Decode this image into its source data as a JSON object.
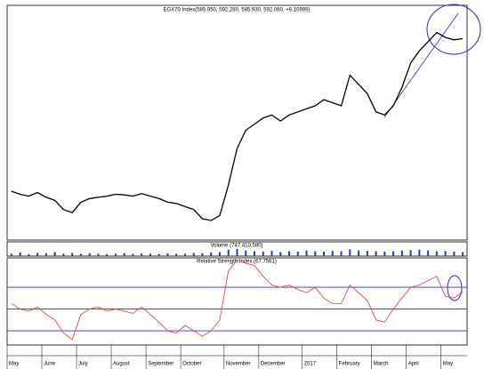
{
  "chart_data": [
    {
      "type": "line",
      "title": "EGX70 Index(585.950, 592.280, 585.930, 592.060, +6.10999)",
      "categories": [
        "May",
        null,
        null,
        null,
        "June",
        null,
        null,
        null,
        "July",
        null,
        null,
        null,
        "August",
        null,
        null,
        null,
        "September",
        null,
        null,
        null,
        "October",
        null,
        null,
        null,
        null,
        "November",
        null,
        null,
        null,
        "December",
        null,
        null,
        null,
        null,
        "2017",
        null,
        null,
        null,
        "February",
        null,
        null,
        null,
        "March",
        null,
        null,
        null,
        "April",
        null,
        null,
        null,
        "May",
        null,
        null
      ],
      "series": [
        {
          "name": "EGX70 Index",
          "color": "#000000",
          "values": [
            330,
            325,
            322,
            328,
            320,
            315,
            300,
            295,
            312,
            318,
            320,
            322,
            325,
            324,
            322,
            326,
            322,
            318,
            312,
            310,
            305,
            300,
            285,
            282,
            290,
            340,
            400,
            430,
            440,
            450,
            455,
            445,
            455,
            460,
            465,
            470,
            480,
            475,
            470,
            520,
            505,
            490,
            460,
            455,
            470,
            500,
            540,
            560,
            575,
            590,
            582,
            578,
            580
          ]
        }
      ],
      "ylim": [
        250,
        620
      ]
    },
    {
      "type": "bar",
      "title": "Volume (747,410,580)",
      "series": [
        {
          "name": "Volume",
          "color": "#1f3fbf",
          "values": [
            30,
            45,
            25,
            40,
            35,
            50,
            30,
            40,
            28,
            35,
            30,
            25,
            30,
            35,
            28,
            32,
            30,
            26,
            34,
            30,
            28,
            40,
            35,
            45,
            50,
            80,
            90,
            70,
            60,
            55,
            65,
            50,
            60,
            55,
            70,
            60,
            55,
            65,
            60,
            85,
            70,
            65,
            60,
            55,
            60,
            70,
            75,
            80,
            70,
            60,
            65,
            55,
            50
          ]
        }
      ],
      "ylim": [
        0,
        100
      ]
    },
    {
      "type": "line",
      "title": "Relative Strength Index (67.7561)",
      "series": [
        {
          "name": "Relative Strength Index",
          "color": "#ff3030",
          "values": [
            55,
            50,
            48,
            52,
            45,
            40,
            28,
            22,
            45,
            50,
            52,
            48,
            50,
            48,
            46,
            52,
            45,
            38,
            30,
            28,
            35,
            30,
            25,
            30,
            40,
            85,
            95,
            92,
            90,
            80,
            72,
            70,
            72,
            68,
            65,
            70,
            60,
            55,
            55,
            72,
            65,
            58,
            40,
            38,
            50,
            60,
            70,
            72,
            76,
            80,
            62,
            60,
            66
          ]
        }
      ],
      "ylim": [
        17,
        97
      ],
      "yticks": [
        30,
        50,
        70
      ],
      "grid": true
    }
  ]
}
